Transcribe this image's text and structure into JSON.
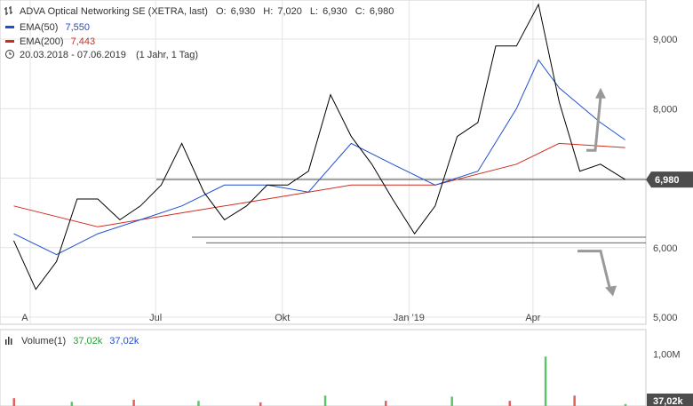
{
  "legend": {
    "title_line": "ADVA Optical Networking SE (XETRA, last)",
    "ohlc": {
      "o_label": "O:",
      "o": "6,930",
      "h_label": "H:",
      "h": "7,020",
      "l_label": "L:",
      "l": "6,930",
      "c_label": "C:",
      "c": "6,980"
    },
    "ema50_label": "EMA(50)",
    "ema50_value": "7,550",
    "ema200_label": "EMA(200)",
    "ema200_value": "7,443",
    "range_text": "20.03.2018 - 07.06.2019",
    "period_text": "(1 Jahr, 1 Tag)",
    "volume_label": "Volume(1)",
    "volume_value_1": "37,02k",
    "volume_value_2": "37,02k"
  },
  "last_price_flag": "6,980",
  "volume_flag": "37,02k",
  "colors": {
    "price": "#000000",
    "ema50": "#1f4fd1",
    "ema200": "#d12b1f",
    "vol_up": "#5cc46b",
    "vol_down": "#e36060",
    "arrow": "#999999",
    "grid": "#e4e4e4",
    "flag": "#4d4d4d"
  },
  "chart_data": {
    "type": "line",
    "symbol": "ADVA Optical Networking SE",
    "x_ticks": [
      "A",
      "Jul",
      "Okt",
      "Jan '19",
      "Apr"
    ],
    "y_ticks": [
      "5,000",
      "6,000",
      "7,000",
      "8,000",
      "9,000"
    ],
    "y_range": [
      5.0,
      9.6
    ],
    "volume_ticks": [
      "1,00M"
    ],
    "volume_range": [
      0,
      1.4
    ],
    "support_levels": [
      6.98,
      6.15,
      6.07
    ],
    "price_series": {
      "x": [
        "2018-03-20",
        "2018-04-05",
        "2018-04-20",
        "2018-05-05",
        "2018-05-20",
        "2018-06-05",
        "2018-06-20",
        "2018-07-05",
        "2018-07-20",
        "2018-08-05",
        "2018-08-20",
        "2018-09-05",
        "2018-09-20",
        "2018-10-05",
        "2018-10-20",
        "2018-11-05",
        "2018-11-20",
        "2018-12-05",
        "2018-12-20",
        "2019-01-05",
        "2019-01-20",
        "2019-02-05",
        "2019-02-20",
        "2019-03-05",
        "2019-03-20",
        "2019-04-05",
        "2019-04-20",
        "2019-05-05",
        "2019-05-20",
        "2019-06-07"
      ],
      "y": [
        6.1,
        5.4,
        5.8,
        6.7,
        6.7,
        6.4,
        6.6,
        6.9,
        7.5,
        6.8,
        6.4,
        6.6,
        6.9,
        6.9,
        7.1,
        8.2,
        7.6,
        7.2,
        6.7,
        6.2,
        6.6,
        7.6,
        7.8,
        8.9,
        8.9,
        9.5,
        8.1,
        7.1,
        7.2,
        6.98
      ]
    },
    "ema50": {
      "x": [
        "2018-03-20",
        "2018-04-20",
        "2018-05-20",
        "2018-06-20",
        "2018-07-20",
        "2018-08-20",
        "2018-09-20",
        "2018-10-20",
        "2018-11-20",
        "2018-12-20",
        "2019-01-20",
        "2019-02-20",
        "2019-03-20",
        "2019-04-05",
        "2019-04-20",
        "2019-05-20",
        "2019-06-07"
      ],
      "y": [
        6.2,
        5.9,
        6.2,
        6.4,
        6.6,
        6.9,
        6.9,
        6.8,
        7.5,
        7.2,
        6.9,
        7.1,
        8.0,
        8.7,
        8.3,
        7.8,
        7.55
      ]
    },
    "ema200": {
      "x": [
        "2018-03-20",
        "2018-05-20",
        "2018-07-20",
        "2018-09-20",
        "2018-11-20",
        "2019-01-20",
        "2019-03-20",
        "2019-04-20",
        "2019-06-07"
      ],
      "y": [
        6.6,
        6.3,
        6.5,
        6.7,
        6.9,
        6.9,
        7.2,
        7.5,
        7.44
      ]
    },
    "forecast_arrows": [
      {
        "direction": "up",
        "y_from": 7.4,
        "y_to": 8.3
      },
      {
        "direction": "down",
        "y_from": 5.95,
        "y_to": 5.3
      }
    ],
    "volume": {
      "x": [
        "2018-03-20",
        "2018-05-01",
        "2018-06-15",
        "2018-08-01",
        "2018-09-15",
        "2018-11-01",
        "2018-12-15",
        "2019-02-01",
        "2019-03-15",
        "2019-04-10",
        "2019-05-01",
        "2019-06-07"
      ],
      "y": [
        0.15,
        0.08,
        0.12,
        0.1,
        0.07,
        0.2,
        0.1,
        0.18,
        0.1,
        0.95,
        0.2,
        0.037
      ]
    }
  }
}
